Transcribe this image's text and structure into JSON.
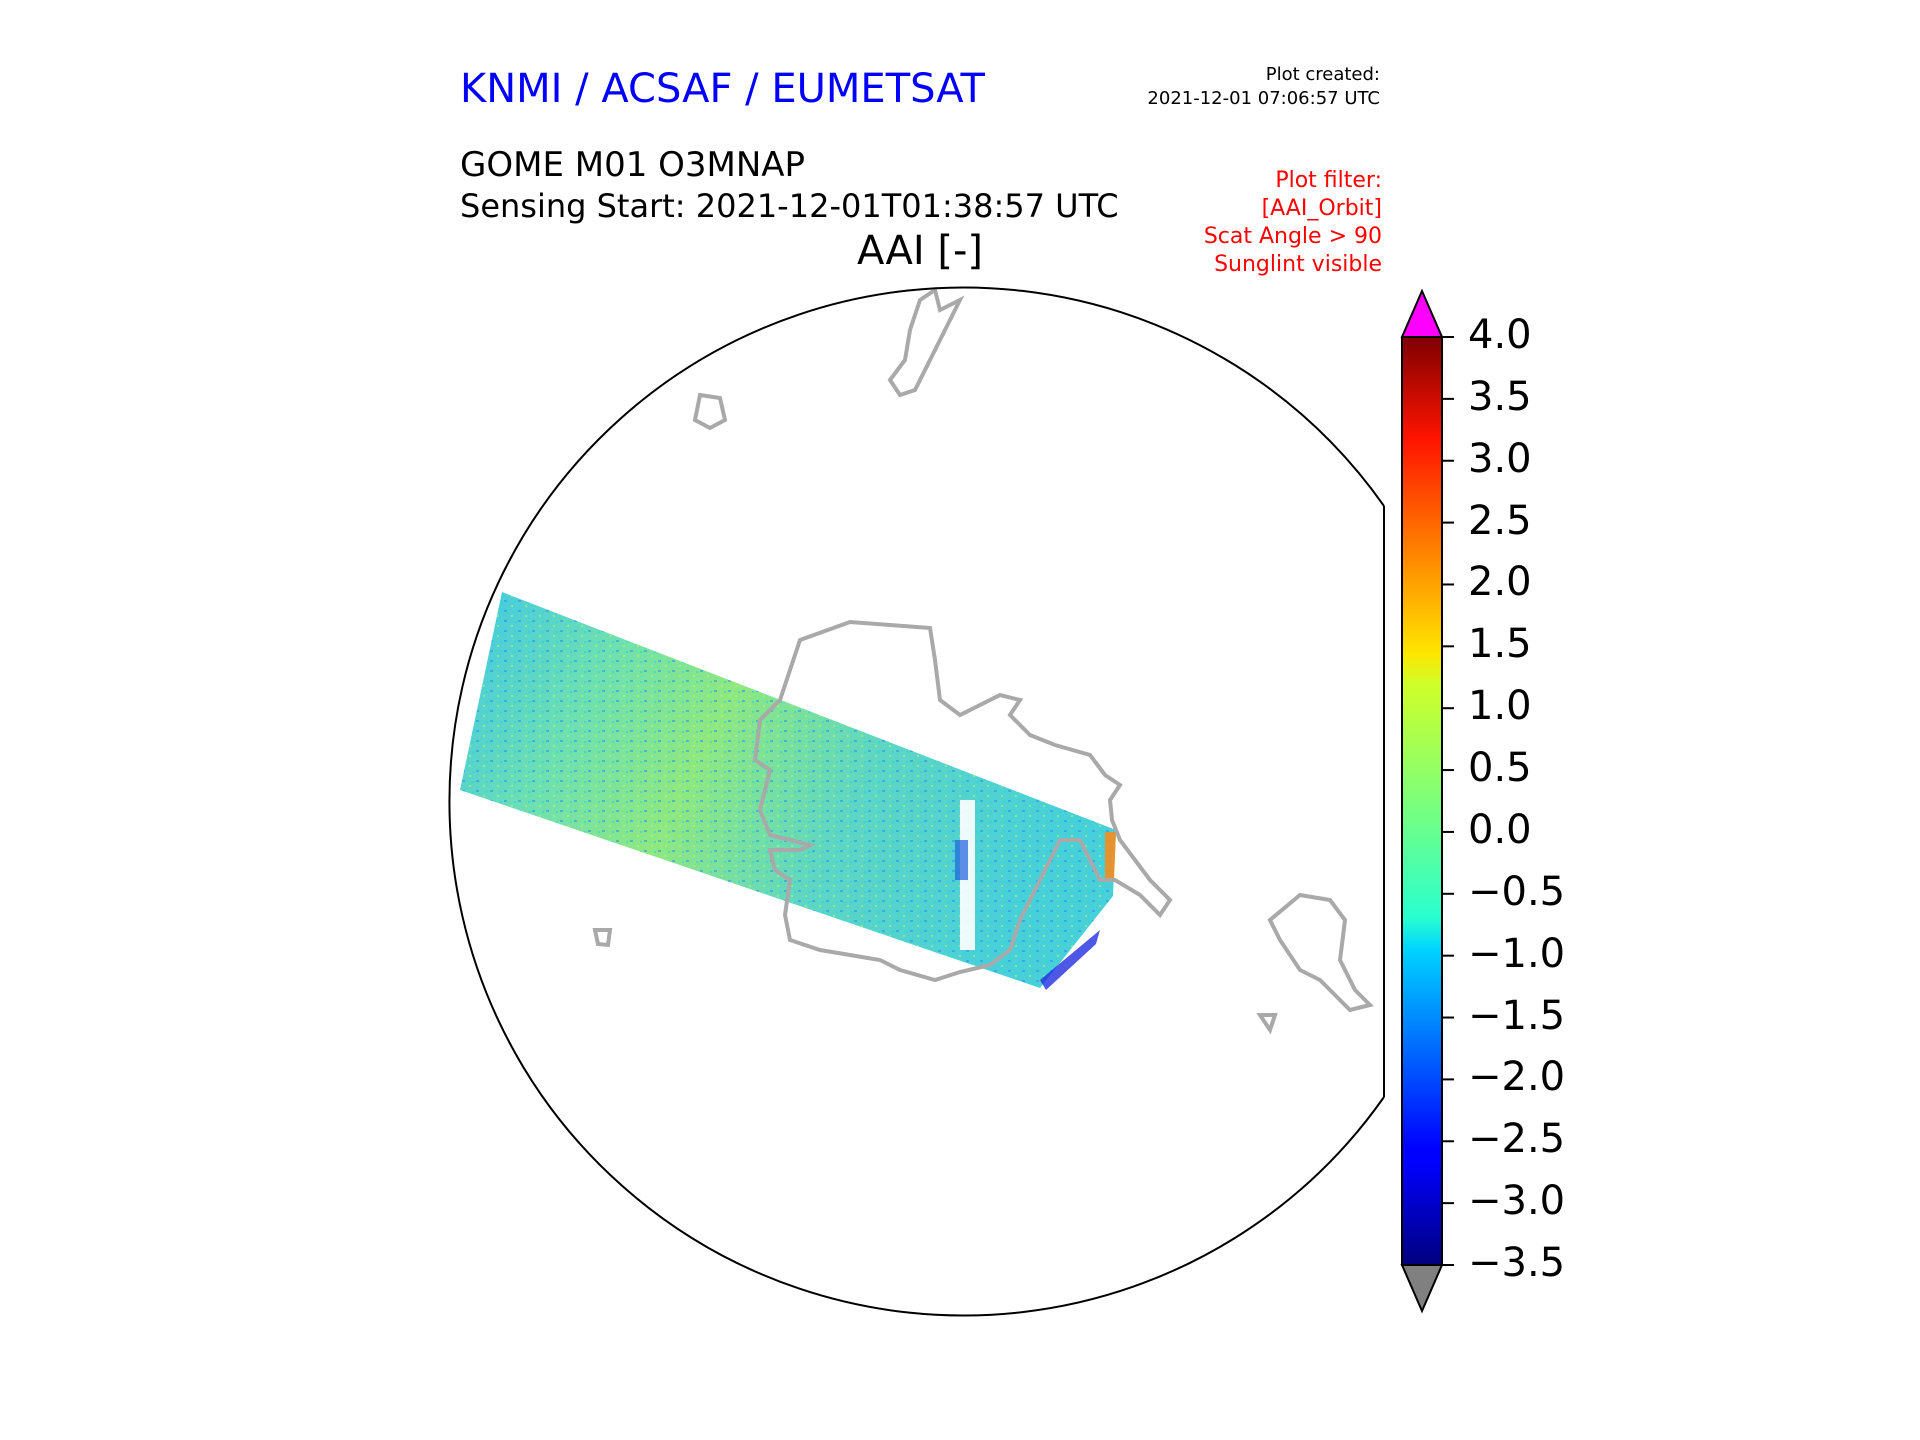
{
  "header": {
    "provider": "KNMI / ACSAF / EUMETSAT",
    "plot_created_label": "Plot created:",
    "plot_created_value": "2021-12-01 07:06:57 UTC",
    "product": "GOME M01 O3MNAP",
    "sensing_start": "Sensing Start: 2021-12-01T01:38:57 UTC",
    "variable_title": "AAI [-]"
  },
  "plot_filter": [
    "Plot filter:",
    "[AAI_Orbit]",
    "Scat Angle > 90",
    "Sunglint visible"
  ],
  "colorbar": {
    "min": -3.5,
    "max": 4.0,
    "ticks": [
      "4.0",
      "3.5",
      "3.0",
      "2.5",
      "2.0",
      "1.5",
      "1.0",
      "0.5",
      "0.0",
      "−0.5",
      "−1.0",
      "−1.5",
      "−2.0",
      "−2.5",
      "−3.0",
      "−3.5"
    ],
    "extend_max_color": "#ff00ff",
    "extend_min_color": "#808080",
    "colormap": "jet"
  },
  "map": {
    "projection": "south-polar-orthographic",
    "coastline_color": "#a9a9a9",
    "swath_dominant_value": -0.3
  }
}
